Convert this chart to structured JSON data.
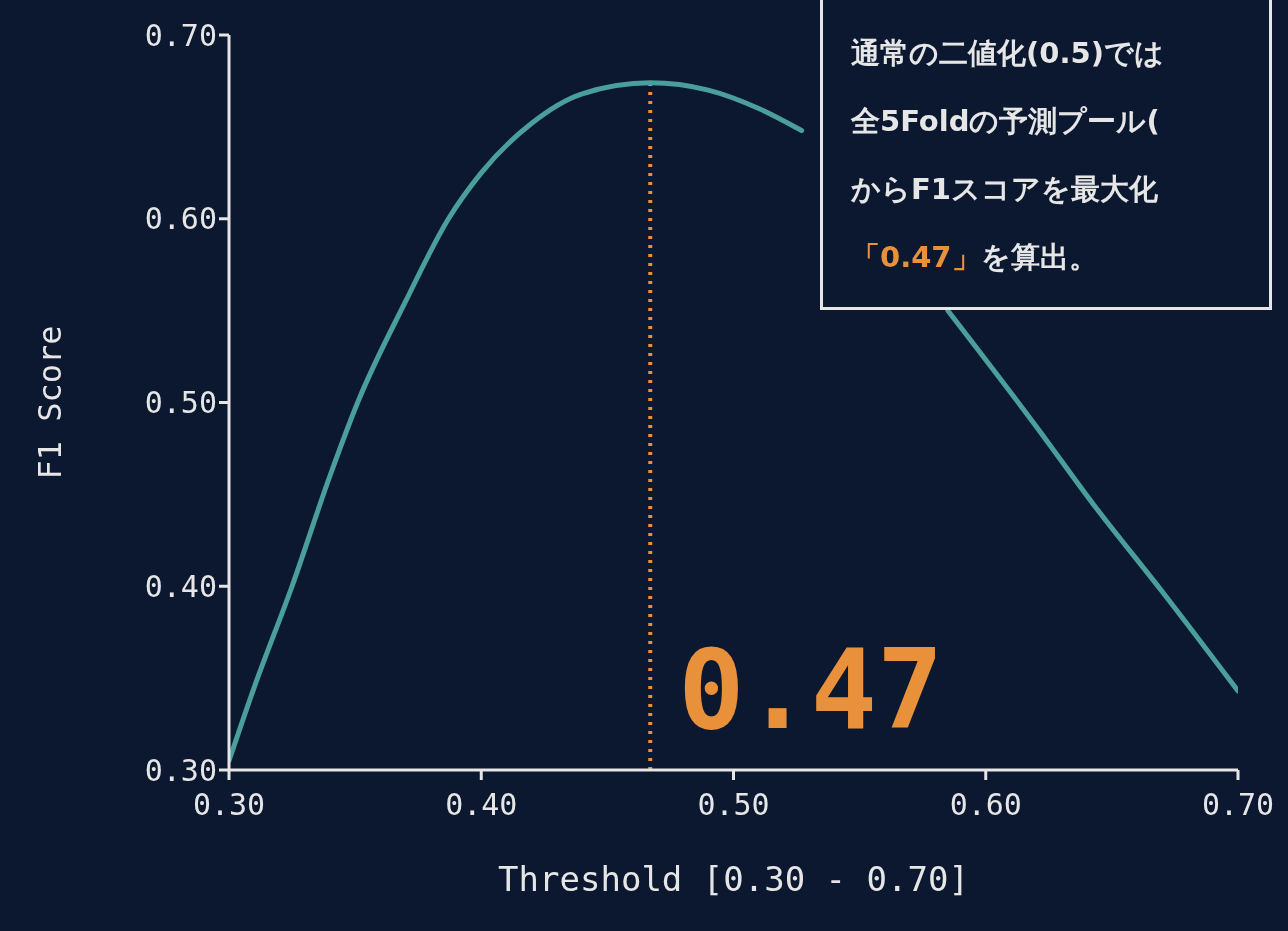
{
  "chart_data": {
    "type": "line",
    "xlabel": "Threshold [0.30 - 0.70]",
    "ylabel": "F1 Score",
    "x": [
      0.3,
      0.31,
      0.325,
      0.34,
      0.351,
      0.37,
      0.387,
      0.4,
      0.42,
      0.44,
      0.467,
      0.49,
      0.51,
      0.527,
      0.55,
      0.57,
      0.585,
      0.62,
      0.643,
      0.67,
      0.7
    ],
    "series": [
      {
        "color": "#4a9e9c",
        "values": [
          0.305,
          0.345,
          0.4,
          0.46,
          0.5,
          0.555,
          0.6,
          0.625,
          0.652,
          0.668,
          0.674,
          0.67,
          0.66,
          0.648,
          null,
          null,
          0.55,
          0.487,
          0.444,
          0.397,
          0.343
        ]
      }
    ],
    "xlim": [
      0.3,
      0.7
    ],
    "ylim": [
      0.3,
      0.7
    ],
    "xticks": [
      {
        "value": 0.3,
        "label": "0.30"
      },
      {
        "value": 0.4,
        "label": "0.40"
      },
      {
        "value": 0.5,
        "label": "0.50"
      },
      {
        "value": 0.6,
        "label": "0.60"
      },
      {
        "value": 0.7,
        "label": "0.70"
      }
    ],
    "yticks": [
      {
        "value": 0.3,
        "label": "0.30"
      },
      {
        "value": 0.4,
        "label": "0.40"
      },
      {
        "value": 0.5,
        "label": "0.50"
      },
      {
        "value": 0.6,
        "label": "0.60"
      },
      {
        "value": 0.7,
        "label": "0.70"
      }
    ],
    "ref_lines": [
      {
        "axis": "x",
        "value": 0.467,
        "label": "0.47",
        "color": "#e8913a",
        "line_style": "dotted"
      }
    ],
    "annotations": [
      "通常の二値化(0.5)では",
      "全5Foldの予測プール(",
      "からF1スコアを最大化",
      "「0.47」を算出。"
    ],
    "grid": false,
    "legend": false,
    "marker": "none",
    "line_style": "solid"
  }
}
